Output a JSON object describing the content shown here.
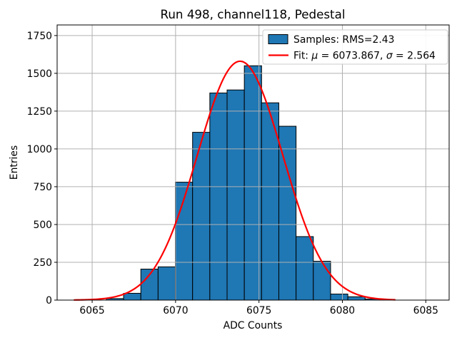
{
  "chart_data": {
    "type": "bar",
    "subtype": "histogram-with-gaussian-fit",
    "title": "Run 498, channel118, Pedestal",
    "xlabel": "ADC Counts",
    "ylabel": "Entries",
    "xlim": [
      6062.9,
      6086.4
    ],
    "ylim": [
      0,
      1820
    ],
    "xticks": [
      6065,
      6070,
      6075,
      6080,
      6085
    ],
    "yticks": [
      0,
      250,
      500,
      750,
      1000,
      1250,
      1500,
      1750
    ],
    "grid": true,
    "legend_position": "upper right",
    "histogram": {
      "bin_start": 6065.85,
      "bin_width": 1.034,
      "counts": [
        10,
        45,
        205,
        220,
        780,
        1110,
        1370,
        1390,
        1550,
        1305,
        1150,
        420,
        257,
        40,
        22,
        7
      ],
      "fill_color": "#1f77b4",
      "edge_color": "#000000",
      "rms": 2.43
    },
    "fit_curve": {
      "mu": 6073.867,
      "sigma": 2.564,
      "amplitude": 1580,
      "x_min": 6063.9,
      "x_max": 6083.2,
      "color": "#ff0000"
    },
    "legend": {
      "items": [
        {
          "swatch": "patch",
          "parts": [
            {
              "text": "Samples: RMS=2.43",
              "italic": false
            }
          ]
        },
        {
          "swatch": "line",
          "parts": [
            {
              "text": "Fit: ",
              "italic": false
            },
            {
              "text": "μ",
              "italic": true
            },
            {
              "text": " = 6073.867, ",
              "italic": false
            },
            {
              "text": "σ",
              "italic": true
            },
            {
              "text": " = 2.564",
              "italic": false
            }
          ]
        }
      ]
    },
    "colors": {
      "grid": "#b0b0b0",
      "axes": "#000000",
      "background": "#ffffff",
      "legend_border": "#cccccc",
      "legend_background": "#ffffff"
    }
  }
}
